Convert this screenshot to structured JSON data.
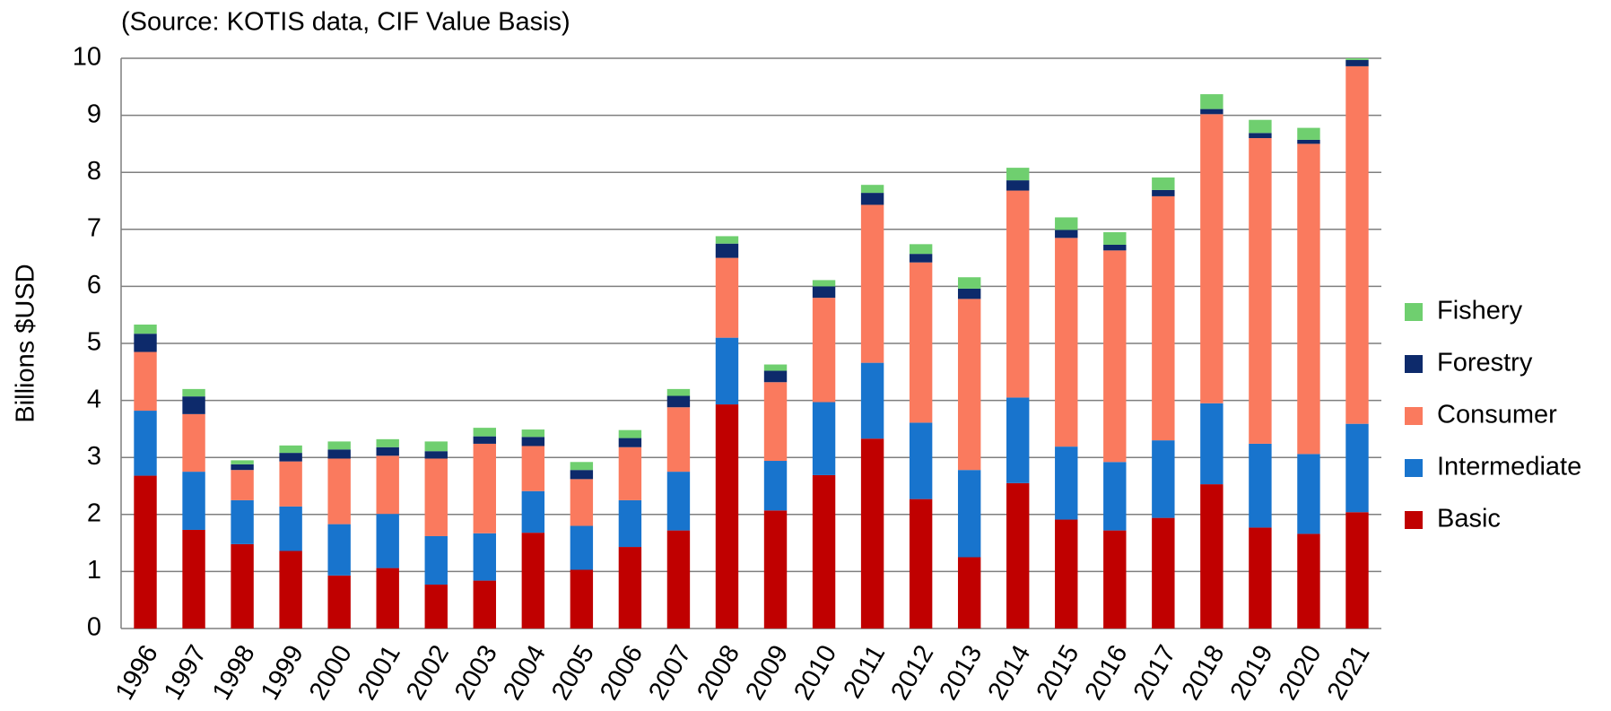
{
  "chart_data": {
    "type": "stacked_bar",
    "subtitle": "(Source: KOTIS data, CIF Value Basis)",
    "y_label": "Billions $USD",
    "categories": [
      "1996",
      "1997",
      "1998",
      "1999",
      "2000",
      "2001",
      "2002",
      "2003",
      "2004",
      "2005",
      "2006",
      "2007",
      "2008",
      "2009",
      "2010",
      "2011",
      "2012",
      "2013",
      "2014",
      "2015",
      "2016",
      "2017",
      "2018",
      "2019",
      "2020",
      "2021"
    ],
    "series": [
      {
        "name": "Basic",
        "color": "#c00000",
        "values": [
          2.68,
          1.73,
          1.48,
          1.36,
          0.93,
          1.06,
          0.77,
          0.84,
          1.68,
          1.03,
          1.43,
          1.72,
          3.93,
          2.07,
          2.69,
          3.33,
          2.27,
          1.25,
          2.55,
          1.91,
          1.72,
          1.94,
          2.53,
          1.77,
          1.66,
          2.04
        ]
      },
      {
        "name": "Intermediate",
        "color": "#1874cd",
        "values": [
          1.14,
          1.02,
          0.77,
          0.78,
          0.9,
          0.95,
          0.85,
          0.83,
          0.73,
          0.77,
          0.82,
          1.03,
          1.17,
          0.87,
          1.28,
          1.33,
          1.34,
          1.53,
          1.5,
          1.28,
          1.2,
          1.36,
          1.42,
          1.47,
          1.4,
          1.55
        ]
      },
      {
        "name": "Consumer",
        "color": "#fa7a5e",
        "values": [
          1.03,
          1.01,
          0.53,
          0.79,
          1.15,
          1.02,
          1.36,
          1.57,
          0.79,
          0.82,
          0.93,
          1.13,
          1.4,
          1.38,
          1.83,
          2.77,
          2.81,
          3.0,
          3.63,
          3.66,
          3.71,
          4.28,
          5.07,
          5.36,
          5.44,
          6.27
        ]
      },
      {
        "name": "Forestry",
        "color": "#0d2a6b",
        "values": [
          0.32,
          0.31,
          0.1,
          0.15,
          0.16,
          0.15,
          0.13,
          0.13,
          0.16,
          0.16,
          0.16,
          0.2,
          0.25,
          0.2,
          0.2,
          0.21,
          0.15,
          0.18,
          0.18,
          0.14,
          0.1,
          0.11,
          0.09,
          0.09,
          0.07,
          0.11
        ]
      },
      {
        "name": "Fishery",
        "color": "#6fcf6f",
        "values": [
          0.16,
          0.13,
          0.07,
          0.13,
          0.14,
          0.14,
          0.17,
          0.15,
          0.13,
          0.14,
          0.14,
          0.12,
          0.13,
          0.11,
          0.11,
          0.14,
          0.17,
          0.2,
          0.22,
          0.22,
          0.22,
          0.22,
          0.26,
          0.23,
          0.21,
          0.03
        ]
      }
    ],
    "ylim": [
      0,
      10
    ],
    "yticks": [
      0,
      1,
      2,
      3,
      4,
      5,
      6,
      7,
      8,
      9,
      10
    ],
    "grid": true,
    "legend": "right"
  }
}
